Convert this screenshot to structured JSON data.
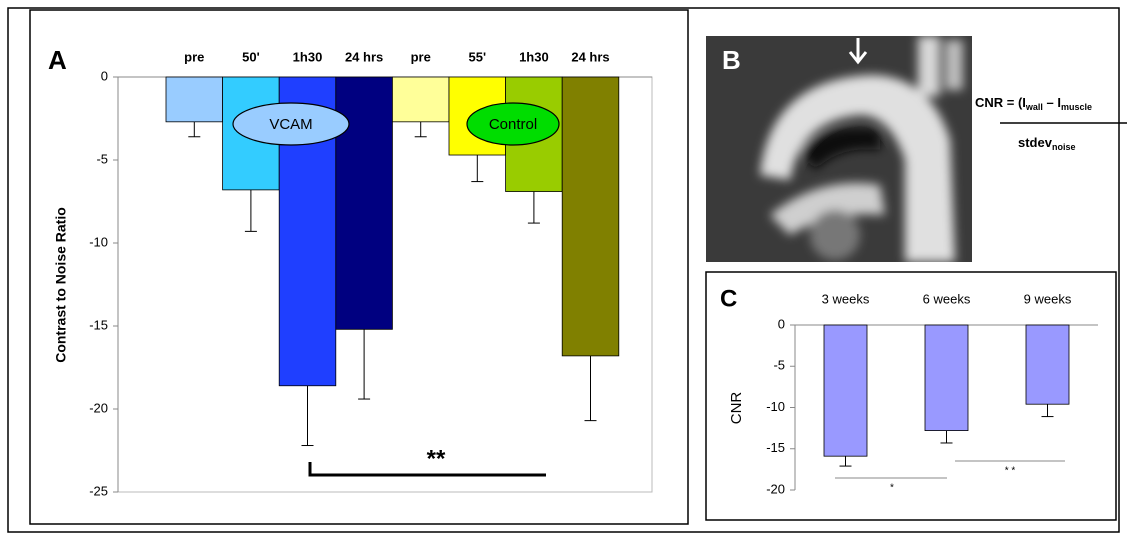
{
  "chart_data": [
    {
      "type": "bar",
      "panel_label": "A",
      "y_label": "Contrast to Noise Ratio",
      "categories": [
        "pre",
        "50'",
        "1h30",
        "24 hrs",
        "pre",
        "55'",
        "1h30",
        "24 hrs"
      ],
      "values": [
        -2.7,
        -6.8,
        -18.6,
        -15.2,
        -2.7,
        -4.7,
        -6.9,
        -16.8
      ],
      "errors": [
        0.9,
        2.5,
        3.6,
        4.2,
        0.9,
        1.6,
        1.9,
        3.9
      ],
      "colors": [
        "#99ccff",
        "#33ccff",
        "#1f3fff",
        "#000080",
        "#ffff99",
        "#ffff00",
        "#99cc00",
        "#808000"
      ],
      "ylim": [
        -25,
        0
      ],
      "yticks": [
        0,
        -5,
        -10,
        -15,
        -20,
        -25
      ],
      "annotations": [
        "VCAM",
        "Control",
        "**"
      ]
    },
    {
      "type": "bar",
      "panel_label": "C",
      "y_label": "CNR",
      "categories": [
        "3 weeks",
        "6 weeks",
        "9 weeks"
      ],
      "values": [
        -15.9,
        -12.8,
        -9.6
      ],
      "errors": [
        1.2,
        1.5,
        1.5
      ],
      "colors": [
        "#9999ff",
        "#9999ff",
        "#9999ff"
      ],
      "ylim": [
        -20,
        0
      ],
      "yticks": [
        0,
        -5,
        -10,
        -15,
        -20
      ],
      "annotations": [
        "*",
        "* *"
      ]
    }
  ],
  "image_panel": {
    "panel_label": "B",
    "formula": {
      "lhs": "CNR = (I",
      "sub1": "wall",
      "mid": " – I",
      "sub2": "muscle",
      "den": "stdev",
      "sub3": "noise"
    }
  }
}
